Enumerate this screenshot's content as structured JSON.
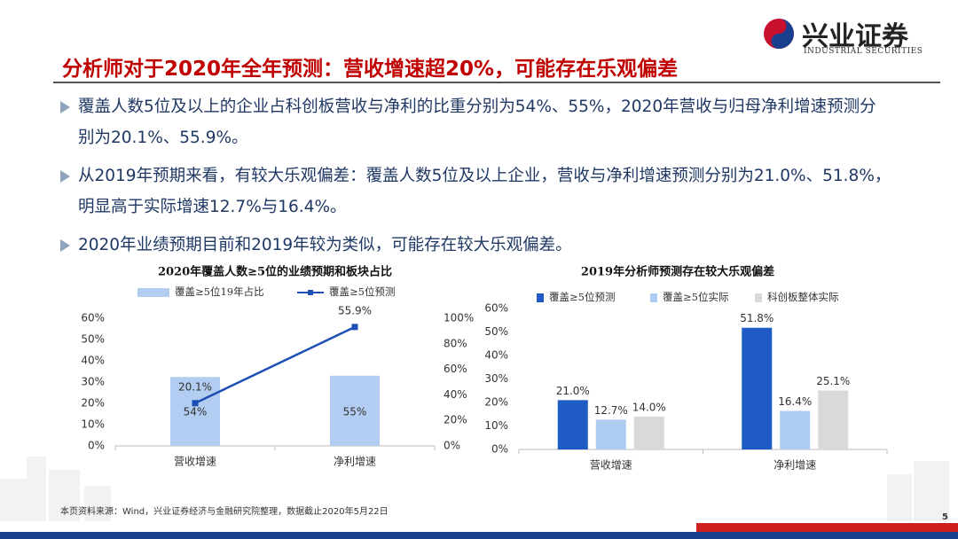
{
  "header": {
    "title": "分析师对于2020年全年预测：营收增速超20%，可能存在乐观偏差",
    "logo_cn": "兴业证券",
    "logo_en": "INDUSTRIAL SECURITIES"
  },
  "bullets": [
    "覆盖人数5位及以上的企业占科创板营收与净利的比重分别为54%、55%，2020年营收与归母净利增速预测分别为20.1%、55.9%。",
    "从2019年预期来看，有较大乐观偏差：覆盖人数5位及以上企业，营收与净利增速预测分别为21.0%、51.8%，明显高于实际增速12.7%与16.4%。",
    "2020年业绩预期目前和2019年较为类似，可能存在较大乐观偏差。"
  ],
  "chart_data": [
    {
      "type": "combo",
      "title": "2020年覆盖人数≥5位的业绩预期和板块占比",
      "categories": [
        "营收增速",
        "净利增速"
      ],
      "series": [
        {
          "name": "覆盖≥5位19年占比",
          "type": "bar",
          "axis": "y2",
          "color": "#b3cdf2",
          "values": [
            54,
            55
          ],
          "value_labels": [
            "54%",
            "55%"
          ]
        },
        {
          "name": "覆盖≥5位预测",
          "type": "line",
          "color": "#1e4fb5",
          "values": [
            20.1,
            55.9
          ],
          "value_labels": [
            "20.1%",
            "55.9%"
          ]
        }
      ],
      "ylim": [
        0,
        60
      ],
      "yticks": [
        {
          "value": 0,
          "label": "0%"
        },
        {
          "value": 10,
          "label": "10%"
        },
        {
          "value": 20,
          "label": "20%"
        },
        {
          "value": 30,
          "label": "30%"
        },
        {
          "value": 40,
          "label": "40%"
        },
        {
          "value": 50,
          "label": "50%"
        },
        {
          "value": 60,
          "label": "60%"
        }
      ],
      "y2lim": [
        0,
        100
      ],
      "y2ticks": [
        {
          "value": 0,
          "label": "0%"
        },
        {
          "value": 20,
          "label": "20%"
        },
        {
          "value": 40,
          "label": "40%"
        },
        {
          "value": 60,
          "label": "60%"
        },
        {
          "value": 80,
          "label": "80%"
        },
        {
          "value": 100,
          "label": "100%"
        }
      ]
    },
    {
      "type": "bar",
      "title": "2019年分析师预测存在较大乐观偏差",
      "categories": [
        "营收增速",
        "净利增速"
      ],
      "series": [
        {
          "name": "覆盖≥5位预测",
          "color": "#1f5bc4",
          "values": [
            21.0,
            51.8
          ],
          "value_labels": [
            "21.0%",
            "51.8%"
          ]
        },
        {
          "name": "覆盖≥5位实际",
          "color": "#aecbf2",
          "values": [
            12.7,
            16.4
          ],
          "value_labels": [
            "12.7%",
            "16.4%"
          ]
        },
        {
          "name": "科创板整体实际",
          "color": "#d9d9d9",
          "values": [
            14.0,
            25.1
          ],
          "value_labels": [
            "14.0%",
            "25.1%"
          ]
        }
      ],
      "ylim": [
        0,
        60
      ],
      "yticks": [
        {
          "value": 0,
          "label": "0%"
        },
        {
          "value": 10,
          "label": "10%"
        },
        {
          "value": 20,
          "label": "20%"
        },
        {
          "value": 30,
          "label": "30%"
        },
        {
          "value": 40,
          "label": "40%"
        },
        {
          "value": 50,
          "label": "50%"
        },
        {
          "value": 60,
          "label": "60%"
        }
      ]
    }
  ],
  "source": "本页资料来源：Wind，兴业证券经济与金融研究院整理，数据截止2020年5月22日",
  "page_number": "5"
}
